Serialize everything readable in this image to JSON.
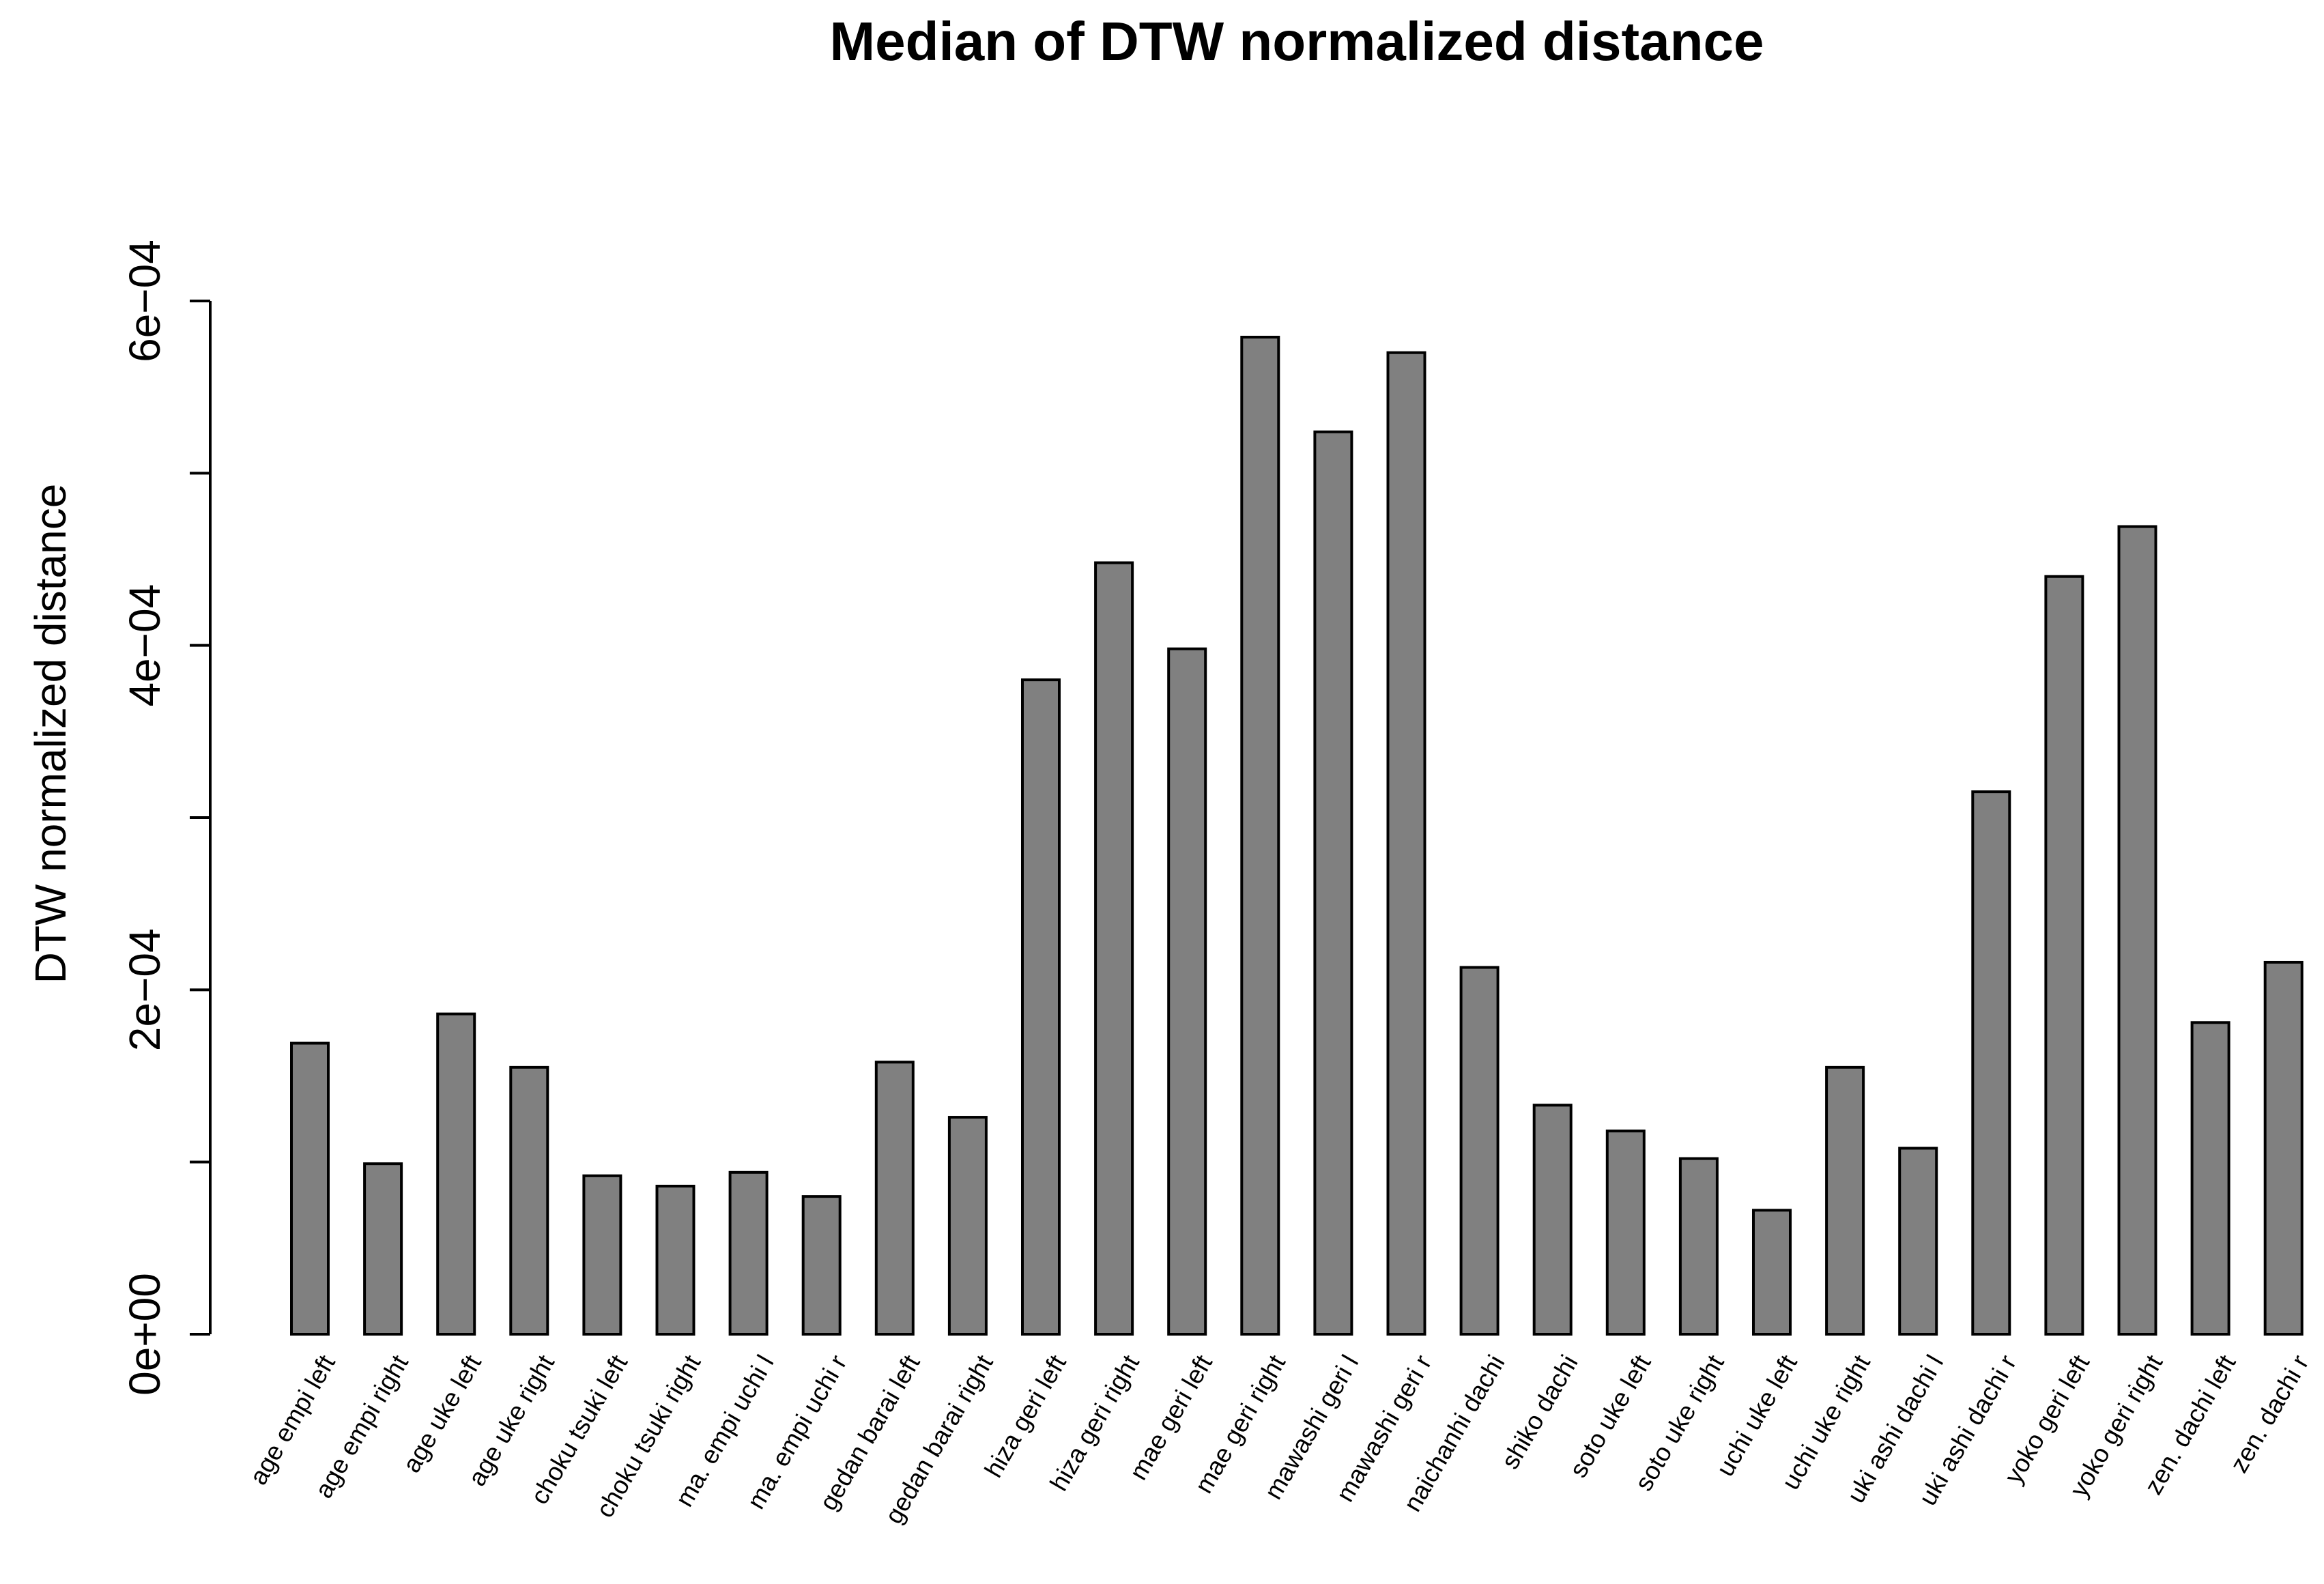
{
  "chart_data": {
    "type": "bar",
    "title": "Median of DTW normalized distance",
    "ylabel": "DTW normalized distance",
    "categories": [
      "age empi left",
      "age empi right",
      "age uke left",
      "age uke right",
      "choku tsuki left",
      "choku tsuki right",
      "ma. empi uchi l",
      "ma. empi uchi r",
      "gedan barai left",
      "gedan barai right",
      "hiza geri left",
      "hiza geri right",
      "mae geri left",
      "mae geri right",
      "mawashi geri l",
      "mawashi geri r",
      "naichanhi dachi",
      "shiko dachi",
      "soto uke left",
      "soto uke right",
      "uchi uke left",
      "uchi uke right",
      "uki ashi dachi l",
      "uki ashi dachi r",
      "yoko geri left",
      "yoko geri right",
      "zen. dachi left",
      "zen. dachi r"
    ],
    "values": [
      0.000169,
      9.9e-05,
      0.000186,
      0.000155,
      9.2e-05,
      8.6e-05,
      9.4e-05,
      8e-05,
      0.000158,
      0.000126,
      0.00038,
      0.000448,
      0.000398,
      0.000579,
      0.000524,
      0.00057,
      0.000213,
      0.000133,
      0.000118,
      0.000102,
      7.2e-05,
      0.000155,
      0.000108,
      0.000315,
      0.00044,
      0.000469,
      0.000181,
      0.000216
    ],
    "color": "#808080",
    "ylim": [
      0,
      0.0006
    ],
    "yticks": [
      {
        "value": 0,
        "label": "0e+00"
      },
      {
        "value": 0.0001,
        "label": null
      },
      {
        "value": 0.0002,
        "label": "2e−04"
      },
      {
        "value": 0.0003,
        "label": null
      },
      {
        "value": 0.0004,
        "label": "4e−04"
      },
      {
        "value": 0.0005,
        "label": null
      },
      {
        "value": 0.0006,
        "label": "6e−04"
      }
    ],
    "grid": false
  }
}
